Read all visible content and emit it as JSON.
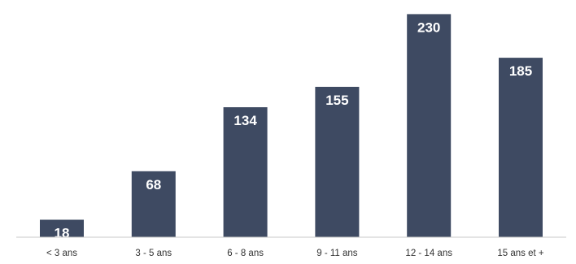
{
  "chart_data": {
    "type": "bar",
    "categories": [
      "< 3 ans",
      "3 - 5 ans",
      "6 - 8 ans",
      "9 - 11 ans",
      "12 - 14 ans",
      "15 ans et +"
    ],
    "values": [
      18,
      68,
      134,
      155,
      230,
      185
    ],
    "title": "",
    "xlabel": "",
    "ylabel": "",
    "ylim": [
      0,
      237
    ],
    "grid": false,
    "legend": "none",
    "data_labels": "inside-top",
    "colors": {
      "bar": "#3e4a62",
      "label": "#ffffff",
      "axis": "#c8c8c8",
      "tick_text": "#333333"
    }
  }
}
